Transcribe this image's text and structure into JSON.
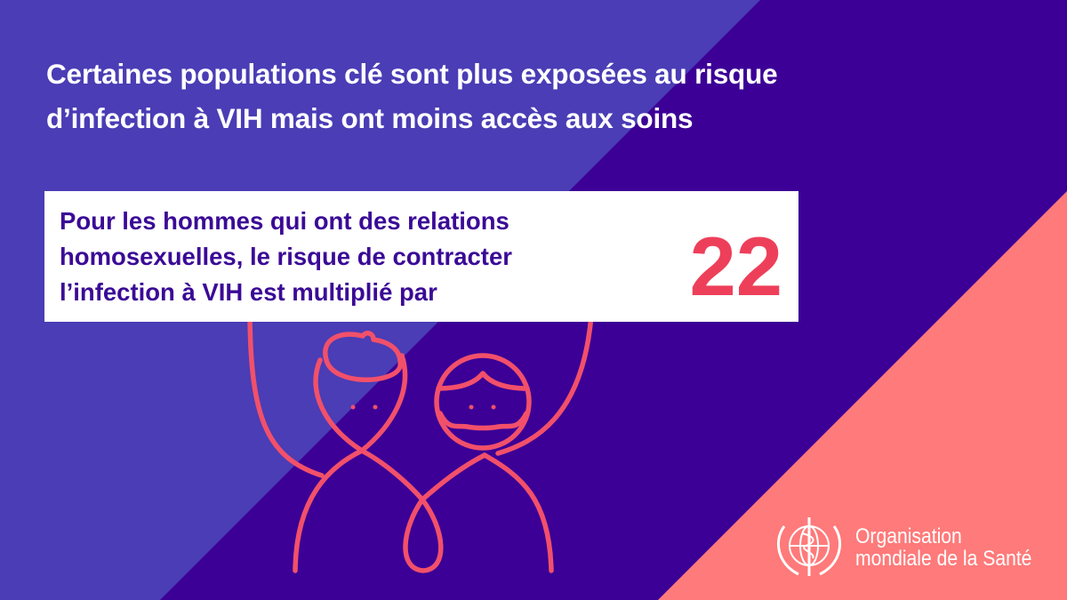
{
  "title": {
    "line1": "Certaines populations clé sont plus exposées au risque",
    "line2": "d’infection à VIH mais ont moins accès aux soins"
  },
  "callout": {
    "line1": "Pour les hommes qui ont des relations",
    "line2": "homosexuelles, le risque de contracter",
    "line3": "l’infection à VIH est multiplié par",
    "number": "22"
  },
  "logo": {
    "line1": "Organisation",
    "line2": "mondiale de la Santé",
    "icon": "who-emblem-icon"
  },
  "colors": {
    "light_purple": "#4a3db5",
    "dark_purple": "#3c0096",
    "coral": "#ff7a7a",
    "accent_red": "#ee3f5a"
  }
}
